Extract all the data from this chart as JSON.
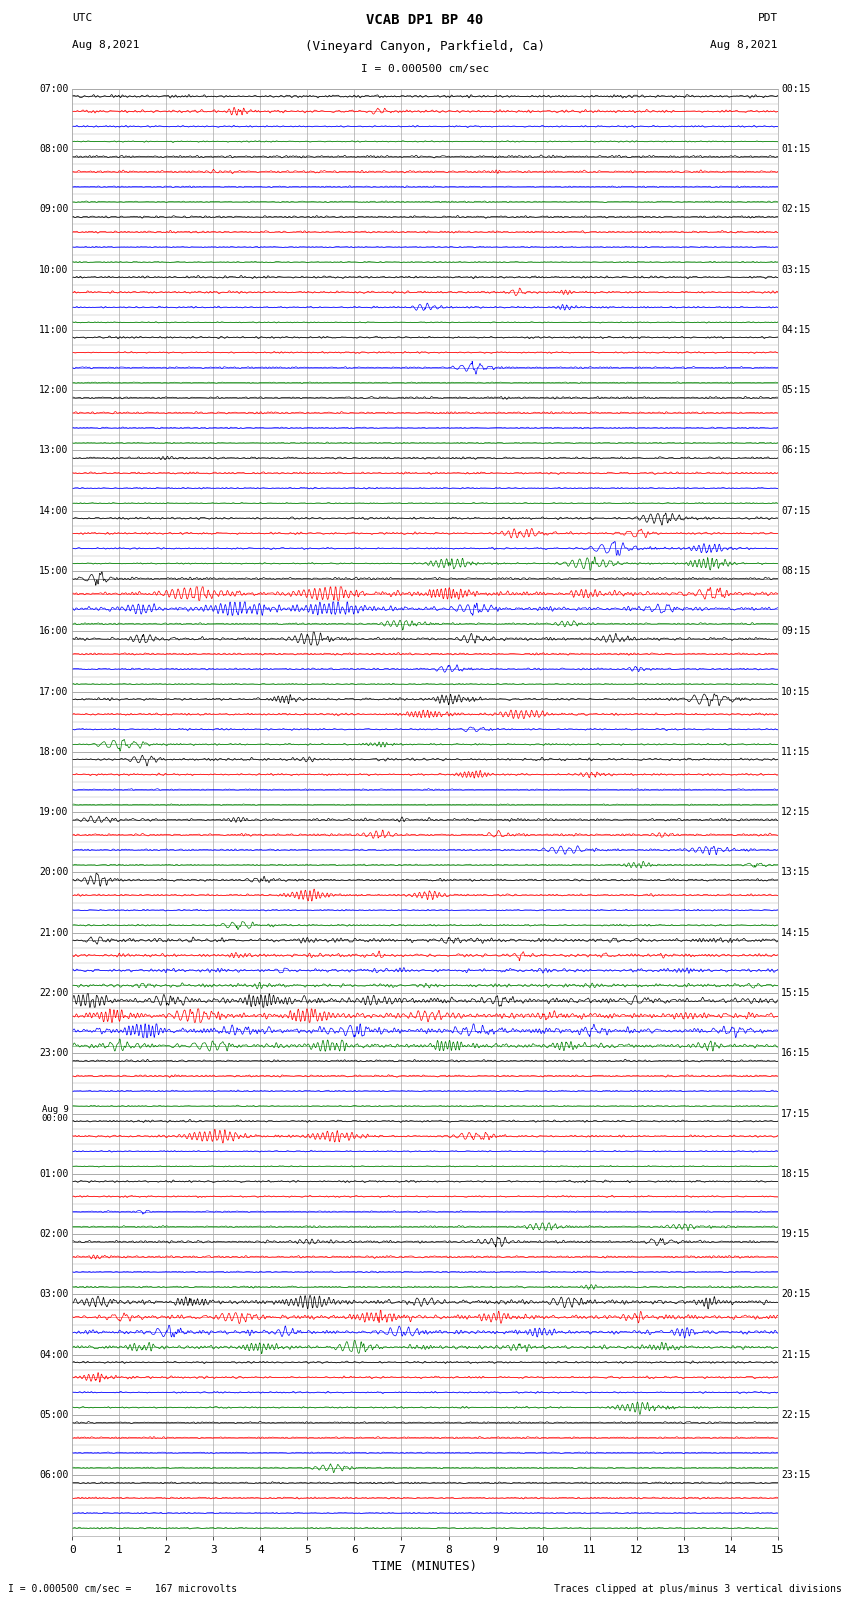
{
  "title_line1": "VCAB DP1 BP 40",
  "title_line2": "(Vineyard Canyon, Parkfield, Ca)",
  "scale_label": "I = 0.000500 cm/sec",
  "utc_label": "UTC",
  "utc_date": "Aug 8,2021",
  "pdt_label": "PDT",
  "pdt_date": "Aug 8,2021",
  "xlabel": "TIME (MINUTES)",
  "bottom_left": "I = 0.000500 cm/sec =    167 microvolts",
  "bottom_right": "Traces clipped at plus/minus 3 vertical divisions",
  "xmin": 0,
  "xmax": 15,
  "xticks": [
    0,
    1,
    2,
    3,
    4,
    5,
    6,
    7,
    8,
    9,
    10,
    11,
    12,
    13,
    14,
    15
  ],
  "background_color": "#ffffff",
  "grid_color": "#aaaaaa",
  "trace_colors": [
    "#000000",
    "#ff0000",
    "#0000ff",
    "#008000"
  ],
  "n_hours": 24,
  "fig_width": 8.5,
  "fig_height": 16.13,
  "utc_hour_labels": [
    "07:00",
    "08:00",
    "09:00",
    "10:00",
    "11:00",
    "12:00",
    "13:00",
    "14:00",
    "15:00",
    "16:00",
    "17:00",
    "18:00",
    "19:00",
    "20:00",
    "21:00",
    "22:00",
    "23:00",
    "Aug 9\n00:00",
    "01:00",
    "02:00",
    "03:00",
    "04:00",
    "05:00",
    "06:00"
  ],
  "pdt_hour_labels": [
    "00:15",
    "01:15",
    "02:15",
    "03:15",
    "04:15",
    "05:15",
    "06:15",
    "07:15",
    "08:15",
    "09:15",
    "10:15",
    "11:15",
    "12:15",
    "13:15",
    "14:15",
    "15:15",
    "16:15",
    "17:15",
    "18:15",
    "19:15",
    "20:15",
    "21:15",
    "22:15",
    "23:15"
  ]
}
